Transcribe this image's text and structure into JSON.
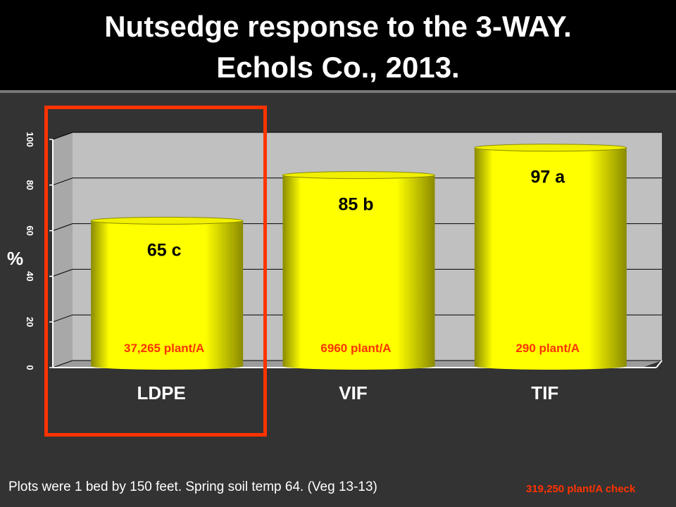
{
  "title_line1": "Nutsedge response to the 3-WAY.",
  "title_line2": "Echols Co., 2013.",
  "footnote": "Plots were 1 bed by 150 feet. Spring soil temp 64. (Veg 13-13)",
  "check_note": "319,250 plant/A check",
  "colors": {
    "bar_fill": "#ffff00",
    "bar_top": "#f0f000",
    "bar_shadow": "#8a8a00",
    "plot_back": "#c0c0c0",
    "floor": "#9c9c9c",
    "highlight": "#ff3300",
    "count_label": "#ff3300"
  },
  "chart_data": {
    "type": "bar",
    "style": "3d-cylinder",
    "categories": [
      "LDPE",
      "VIF",
      "TIF"
    ],
    "values": [
      65,
      85,
      97
    ],
    "value_labels": [
      "65 c",
      "85 b",
      "97 a"
    ],
    "count_labels": [
      "37,265 plant/A",
      "6960 plant/A",
      "290 plant/A"
    ],
    "ylabel": "%",
    "ylim": [
      0,
      100
    ],
    "yticks": [
      0,
      20,
      40,
      60,
      80,
      100
    ],
    "grid": true,
    "highlighted_category": "LDPE"
  }
}
